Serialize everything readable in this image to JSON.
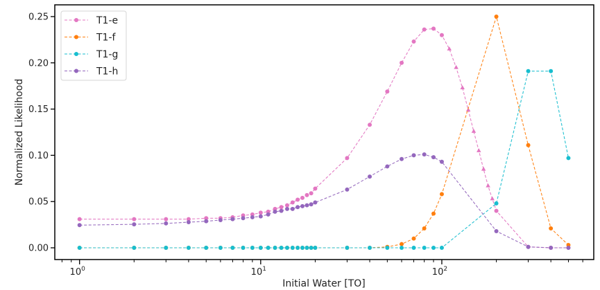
{
  "chart_data": {
    "type": "line",
    "title": "",
    "xlabel": "Initial Water [TO]",
    "ylabel": "Normalized Likelihood",
    "xscale": "log",
    "xlim": [
      0.73,
      690
    ],
    "ylim": [
      -0.0127,
      0.2627
    ],
    "grid": false,
    "legend_position": "top-left",
    "xticks": [
      {
        "value": 1,
        "base": "10",
        "exp": "0"
      },
      {
        "value": 10,
        "base": "10",
        "exp": "1"
      },
      {
        "value": 100,
        "base": "10",
        "exp": "2"
      }
    ],
    "yticks": [
      {
        "value": 0.0,
        "label": "0.00"
      },
      {
        "value": 0.05,
        "label": "0.05"
      },
      {
        "value": 0.1,
        "label": "0.10"
      },
      {
        "value": 0.15,
        "label": "0.15"
      },
      {
        "value": 0.2,
        "label": "0.20"
      },
      {
        "value": 0.25,
        "label": "0.25"
      }
    ],
    "series": [
      {
        "name": "T1-e",
        "color": "#e377c2",
        "points": [
          [
            1,
            0.031
          ],
          [
            2,
            0.031
          ],
          [
            3,
            0.031
          ],
          [
            4,
            0.031
          ],
          [
            5,
            0.032
          ],
          [
            6,
            0.032
          ],
          [
            7,
            0.033
          ],
          [
            8,
            0.035
          ],
          [
            9,
            0.036
          ],
          [
            10,
            0.038
          ],
          [
            11,
            0.039
          ],
          [
            12,
            0.042
          ],
          [
            13,
            0.044
          ],
          [
            14,
            0.046
          ],
          [
            15,
            0.049
          ],
          [
            16,
            0.052
          ],
          [
            17,
            0.054
          ],
          [
            18,
            0.057
          ],
          [
            19,
            0.059
          ],
          [
            20,
            0.064
          ],
          [
            30,
            0.097
          ],
          [
            40,
            0.133
          ],
          [
            50,
            0.169
          ],
          [
            60,
            0.2
          ],
          [
            70,
            0.223
          ],
          [
            80,
            0.236
          ],
          [
            90,
            0.237
          ],
          [
            100,
            0.23
          ],
          [
            110,
            0.215,
            "triangle"
          ],
          [
            120,
            0.195,
            "triangle"
          ],
          [
            130,
            0.173,
            "triangle"
          ],
          [
            140,
            0.149,
            "triangle"
          ],
          [
            150,
            0.126,
            "triangle"
          ],
          [
            160,
            0.105,
            "triangle"
          ],
          [
            170,
            0.085,
            "triangle"
          ],
          [
            180,
            0.067,
            "triangle"
          ],
          [
            190,
            0.053,
            "triangle"
          ],
          [
            200,
            0.04
          ],
          [
            300,
            0.001
          ],
          [
            400,
            0.0
          ],
          [
            500,
            0.0
          ]
        ]
      },
      {
        "name": "T1-f",
        "color": "#ff7f0e",
        "points": [
          [
            1,
            0
          ],
          [
            2,
            0
          ],
          [
            3,
            0
          ],
          [
            4,
            0
          ],
          [
            5,
            0
          ],
          [
            6,
            0
          ],
          [
            7,
            0
          ],
          [
            8,
            0
          ],
          [
            9,
            0
          ],
          [
            10,
            0
          ],
          [
            11,
            0
          ],
          [
            12,
            0
          ],
          [
            13,
            0
          ],
          [
            14,
            0
          ],
          [
            15,
            0
          ],
          [
            16,
            0
          ],
          [
            17,
            0
          ],
          [
            18,
            0
          ],
          [
            19,
            0
          ],
          [
            20,
            0
          ],
          [
            30,
            0
          ],
          [
            40,
            0
          ],
          [
            50,
            0.001
          ],
          [
            60,
            0.004
          ],
          [
            70,
            0.01
          ],
          [
            80,
            0.021
          ],
          [
            90,
            0.037
          ],
          [
            100,
            0.058
          ],
          [
            200,
            0.25
          ],
          [
            300,
            0.111
          ],
          [
            400,
            0.021
          ],
          [
            500,
            0.003
          ]
        ]
      },
      {
        "name": "T1-g",
        "color": "#17becf",
        "points": [
          [
            1,
            0
          ],
          [
            2,
            0
          ],
          [
            3,
            0
          ],
          [
            4,
            0
          ],
          [
            5,
            0
          ],
          [
            6,
            0
          ],
          [
            7,
            0
          ],
          [
            8,
            0
          ],
          [
            9,
            0
          ],
          [
            10,
            0
          ],
          [
            11,
            0
          ],
          [
            12,
            0
          ],
          [
            13,
            0
          ],
          [
            14,
            0
          ],
          [
            15,
            0
          ],
          [
            16,
            0
          ],
          [
            17,
            0
          ],
          [
            18,
            0
          ],
          [
            19,
            0
          ],
          [
            20,
            0
          ],
          [
            30,
            0
          ],
          [
            40,
            0
          ],
          [
            50,
            0
          ],
          [
            60,
            0
          ],
          [
            70,
            0
          ],
          [
            80,
            0
          ],
          [
            90,
            0
          ],
          [
            100,
            0
          ],
          [
            200,
            0.048
          ],
          [
            300,
            0.191
          ],
          [
            400,
            0.191
          ],
          [
            500,
            0.097
          ]
        ]
      },
      {
        "name": "T1-h",
        "color": "#9467bd",
        "points": [
          [
            1,
            0.0245
          ],
          [
            2,
            0.0254
          ],
          [
            3,
            0.0264
          ],
          [
            4,
            0.0277
          ],
          [
            5,
            0.0287
          ],
          [
            6,
            0.03
          ],
          [
            7,
            0.031
          ],
          [
            8,
            0.032
          ],
          [
            9,
            0.033
          ],
          [
            10,
            0.034
          ],
          [
            11,
            0.036
          ],
          [
            12,
            0.039
          ],
          [
            13,
            0.04
          ],
          [
            14,
            0.042
          ],
          [
            15,
            0.042
          ],
          [
            16,
            0.044
          ],
          [
            17,
            0.045
          ],
          [
            18,
            0.046
          ],
          [
            19,
            0.047
          ],
          [
            20,
            0.049
          ],
          [
            30,
            0.063
          ],
          [
            40,
            0.077
          ],
          [
            50,
            0.088
          ],
          [
            60,
            0.096
          ],
          [
            70,
            0.1
          ],
          [
            80,
            0.101
          ],
          [
            90,
            0.098
          ],
          [
            100,
            0.093
          ],
          [
            200,
            0.018
          ],
          [
            300,
            0.001
          ],
          [
            400,
            0.0
          ],
          [
            500,
            0.0
          ]
        ]
      }
    ]
  }
}
